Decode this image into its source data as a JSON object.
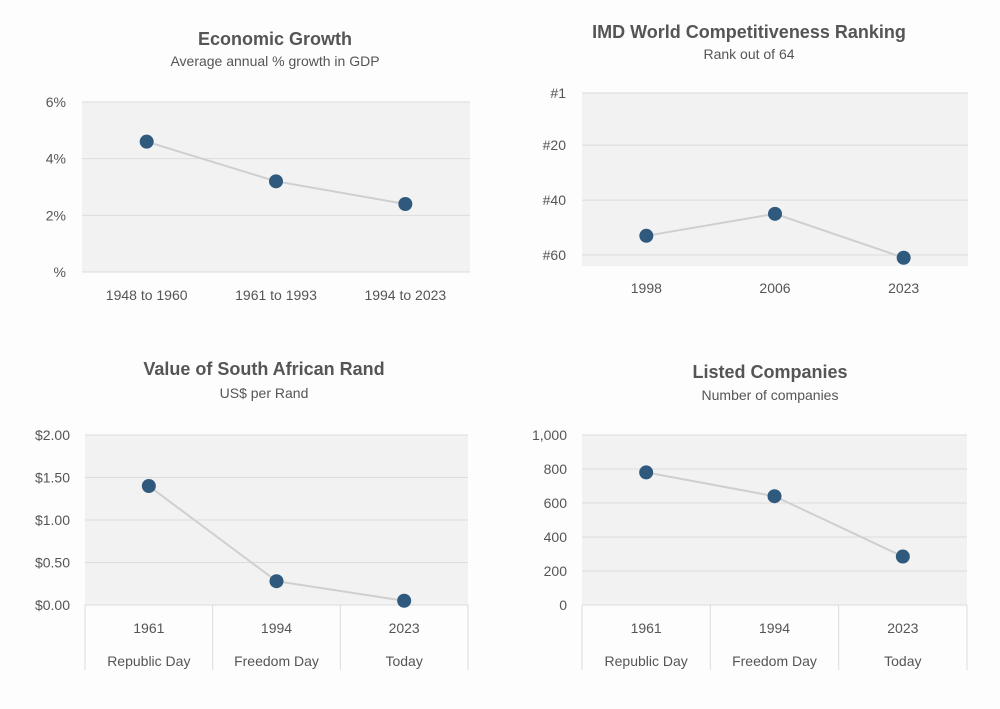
{
  "chart_data": [
    {
      "type": "line",
      "title": "Economic Growth",
      "subtitle": "Average annual % growth in GDP",
      "categories": [
        "1948 to 1960",
        "1961 to 1993",
        "1994 to 2023"
      ],
      "values": [
        4.6,
        3.2,
        2.4
      ],
      "y_ticks": [
        0,
        2,
        4,
        6
      ],
      "y_tick_labels": [
        "%",
        "2%",
        "4%",
        "6%"
      ],
      "ylim": [
        0,
        6
      ],
      "grid": true
    },
    {
      "type": "line",
      "title": "IMD World Competitiveness Ranking",
      "subtitle": "Rank out of 64",
      "categories": [
        "1998",
        "2006",
        "2023"
      ],
      "values": [
        53,
        45,
        61
      ],
      "y_reversed": true,
      "y_ticks": [
        1,
        20,
        40,
        60
      ],
      "y_tick_labels": [
        "#1",
        "#20",
        "#40",
        "#60"
      ],
      "ylim": [
        1,
        64
      ],
      "grid": true
    },
    {
      "type": "line",
      "title": "Value of South African Rand",
      "subtitle": "US$ per Rand",
      "categories": [
        "1961",
        "1994",
        "2023"
      ],
      "sub_categories": [
        "Republic Day",
        "Freedom Day",
        "Today"
      ],
      "values": [
        1.4,
        0.28,
        0.05
      ],
      "y_ticks": [
        0,
        0.5,
        1.0,
        1.5,
        2.0
      ],
      "y_tick_labels": [
        "$0.00",
        "$0.50",
        "$1.00",
        "$1.50",
        "$2.00"
      ],
      "ylim": [
        0,
        2
      ],
      "grid": true
    },
    {
      "type": "line",
      "title": "Listed Companies",
      "subtitle": "Number of companies",
      "categories": [
        "1961",
        "1994",
        "2023"
      ],
      "sub_categories": [
        "Republic Day",
        "Freedom Day",
        "Today"
      ],
      "values": [
        780,
        640,
        285
      ],
      "y_ticks": [
        0,
        200,
        400,
        600,
        800,
        1000
      ],
      "y_tick_labels": [
        "0",
        "200",
        "400",
        "600",
        "800",
        "1,000"
      ],
      "ylim": [
        0,
        1000
      ],
      "grid": true
    }
  ],
  "colors": {
    "point": "#2f5a7e",
    "line": "#cfcfcf",
    "plot_background": "#f2f2f2",
    "grid": "#dcdcdc",
    "text": "#555555"
  }
}
